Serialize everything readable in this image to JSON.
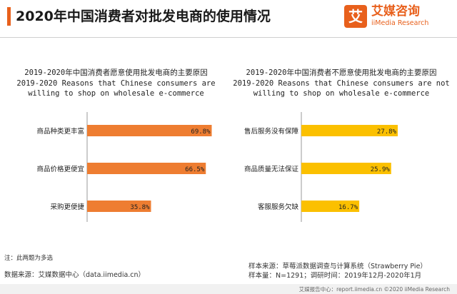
{
  "header": {
    "title": "2020年中国消费者对批发电商的使用情况",
    "logo_cn": "艾媒咨询",
    "logo_en": "iiMedia Research",
    "logo_mark": "艾"
  },
  "colors": {
    "accent": "#e8601c",
    "left_bar": "#ee7d31",
    "right_bar": "#fbc000"
  },
  "chart_data": [
    {
      "type": "bar",
      "orientation": "horizontal",
      "title_cn": "2019-2020年中国消费者愿意使用批发电商的主要原因",
      "title_en_1": "2019-2020 Reasons that Chinese consumers are",
      "title_en_2": "willing  to shop on wholesale e-commerce",
      "categories": [
        "商品种类更丰富",
        "商品价格更便宜",
        "采购更便捷"
      ],
      "values": [
        69.8,
        66.5,
        35.8
      ],
      "labels": [
        "69.8%",
        "66.5%",
        "35.8%"
      ],
      "xlim": [
        0,
        100
      ],
      "color": "#ee7d31",
      "grid": false
    },
    {
      "type": "bar",
      "orientation": "horizontal",
      "title_cn": "2019-2020年中国消费者不愿意使用批发电商的主要原因",
      "title_en_1": "2019-2020 Reasons that Chinese consumers are not",
      "title_en_2": "willing  to shop on wholesale e-commerce",
      "categories": [
        "售后服务没有保障",
        "商品质量无法保证",
        "客服服务欠缺"
      ],
      "values": [
        27.8,
        25.9,
        16.7
      ],
      "labels": [
        "27.8%",
        "25.9%",
        "16.7%"
      ],
      "xlim": [
        0,
        35
      ],
      "color": "#fbc000",
      "grid": false
    }
  ],
  "footer": {
    "note": "注：此两题为多选",
    "data_source": "数据来源：艾媒数据中心（data.iimedia.cn）",
    "sample_source": "样本来源：草莓派数据调查与计算系统（Strawberry Pie）",
    "sample_size": "样本量：N=1291；调研时间：2019年12月-2020年1月",
    "bottom": "艾媒报告中心：report.iimedia.cn  ©2020  iiMedia Research"
  }
}
